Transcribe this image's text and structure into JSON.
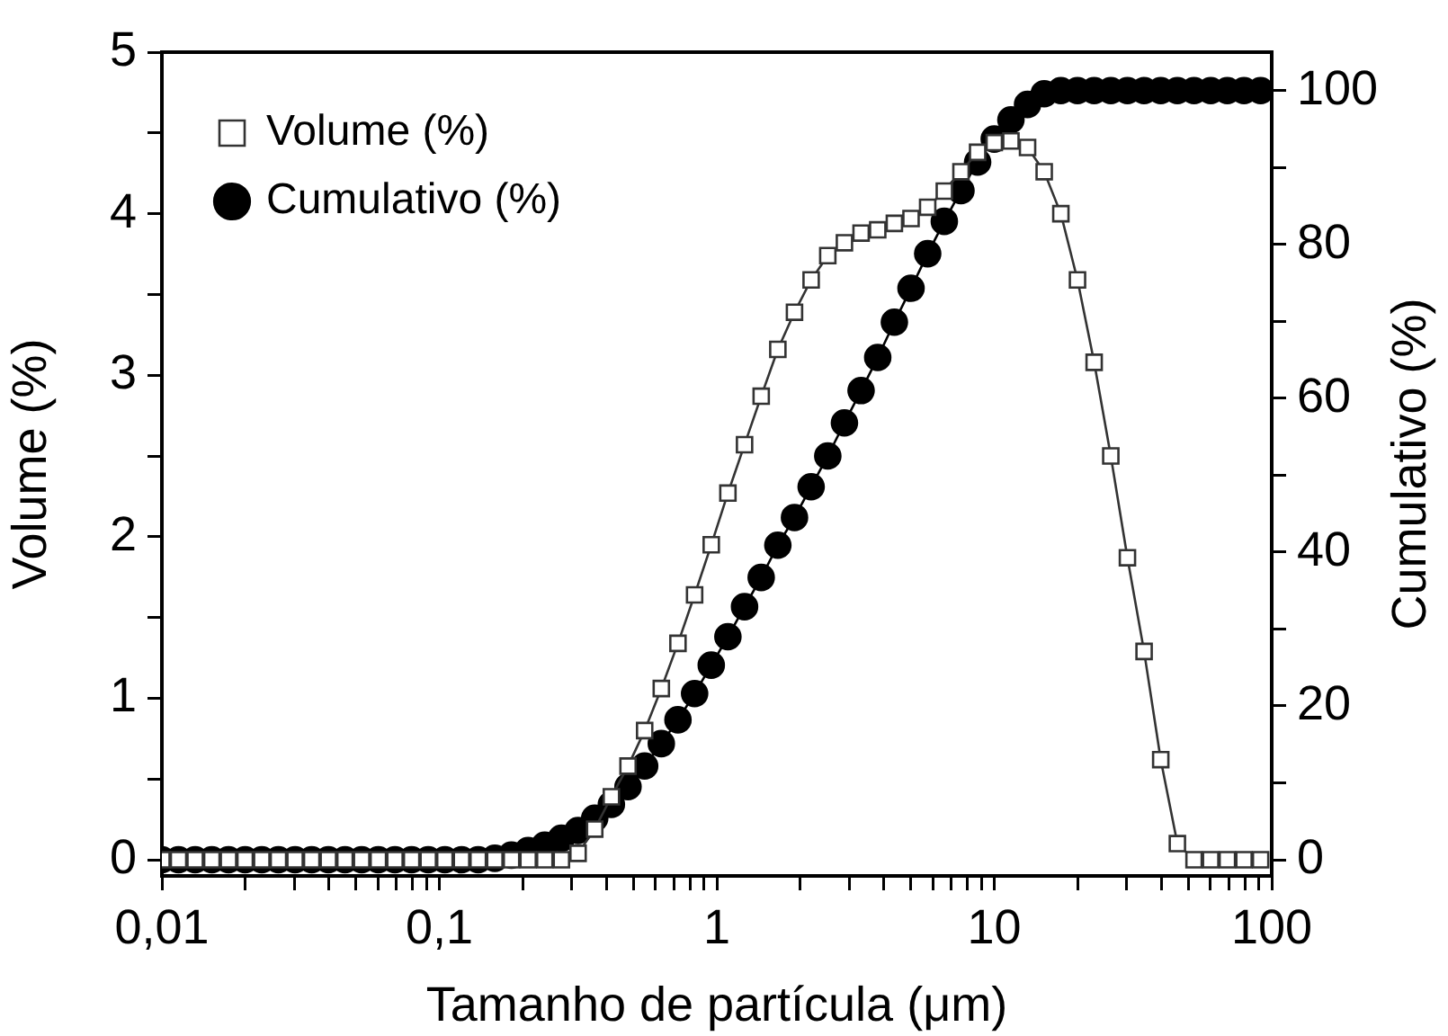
{
  "chart_data": {
    "type": "line",
    "xlabel": "Tamanho de partícula (μm)",
    "ylabel": "Volume (%)",
    "y2label": "Cumulativo (%)",
    "x": [
      0.01,
      0.01148,
      0.01318,
      0.01514,
      0.01738,
      0.01995,
      0.02291,
      0.0263,
      0.0302,
      0.03467,
      0.03981,
      0.04571,
      0.05248,
      0.06026,
      0.06918,
      0.07943,
      0.0912,
      0.10471,
      0.12023,
      0.13804,
      0.15849,
      0.18197,
      0.20893,
      0.23988,
      0.27542,
      0.31623,
      0.36308,
      0.41687,
      0.47863,
      0.54954,
      0.63096,
      0.72444,
      0.83176,
      0.95499,
      1.09648,
      1.25893,
      1.44544,
      1.65959,
      1.90546,
      2.18776,
      2.51189,
      2.88403,
      3.31131,
      3.80189,
      4.36516,
      5.01187,
      5.7544,
      6.60693,
      7.58578,
      8.70964,
      10,
      11.48154,
      13.18257,
      15.13561,
      17.37801,
      19.95262,
      22.90868,
      26.30268,
      30.19952,
      34.67369,
      39.81072,
      45.70882,
      52.48075,
      60.25596,
      69.1831,
      79.43282,
      91.20108
    ],
    "series": [
      {
        "name": "Volume (%)",
        "color": "#333333",
        "marker": "square",
        "values": [
          0,
          0,
          0,
          0,
          0,
          0,
          0,
          0,
          0,
          0,
          0,
          0,
          0,
          0,
          0,
          0,
          0,
          0,
          0,
          0,
          0,
          0,
          0,
          0,
          0,
          0.04,
          0.19,
          0.39,
          0.58,
          0.8,
          1.06,
          1.34,
          1.64,
          1.95,
          2.27,
          2.57,
          2.87,
          3.16,
          3.39,
          3.59,
          3.74,
          3.82,
          3.88,
          3.9,
          3.94,
          3.97,
          4.04,
          4.14,
          4.26,
          4.38,
          4.44,
          4.45,
          4.41,
          4.26,
          4.0,
          3.59,
          3.08,
          2.5,
          1.87,
          1.29,
          0.62,
          0.1,
          0,
          0,
          0,
          0,
          0
        ]
      },
      {
        "name": "Cumulativo (%)",
        "color": "#000000",
        "marker": "circle",
        "axis": "y2",
        "values": [
          0,
          0,
          0,
          0,
          0,
          0,
          0,
          0,
          0,
          0,
          0,
          0,
          0,
          0,
          0,
          0,
          0,
          0,
          0,
          0,
          0.2,
          0.6,
          1.2,
          1.9,
          2.8,
          3.8,
          5.4,
          7.2,
          9.5,
          12.2,
          15.1,
          18.2,
          21.6,
          25.3,
          29.0,
          32.9,
          36.7,
          40.9,
          44.5,
          48.5,
          52.5,
          56.8,
          61.0,
          65.3,
          69.9,
          74.3,
          78.8,
          83.0,
          87.0,
          90.7,
          93.7,
          96.2,
          98.2,
          99.6,
          100,
          100,
          100,
          100,
          100,
          100,
          100,
          100,
          100,
          100,
          100,
          100,
          100
        ]
      }
    ],
    "log": "x",
    "xlim": [
      0.01,
      100
    ],
    "xticks": [
      {
        "value": 0.01,
        "label": "0,01"
      },
      {
        "value": 0.02,
        "label": null
      },
      {
        "value": 0.03,
        "label": null
      },
      {
        "value": 0.04,
        "label": null
      },
      {
        "value": 0.05,
        "label": null
      },
      {
        "value": 0.06,
        "label": null
      },
      {
        "value": 0.07,
        "label": null
      },
      {
        "value": 0.08,
        "label": null
      },
      {
        "value": 0.09,
        "label": null
      },
      {
        "value": 0.1,
        "label": "0,1"
      },
      {
        "value": 0.2,
        "label": null
      },
      {
        "value": 0.3,
        "label": null
      },
      {
        "value": 0.4,
        "label": null
      },
      {
        "value": 0.5,
        "label": null
      },
      {
        "value": 0.6,
        "label": null
      },
      {
        "value": 0.7,
        "label": null
      },
      {
        "value": 0.8,
        "label": null
      },
      {
        "value": 0.9,
        "label": null
      },
      1,
      {
        "value": 2,
        "label": null
      },
      {
        "value": 3,
        "label": null
      },
      {
        "value": 4,
        "label": null
      },
      {
        "value": 5,
        "label": null
      },
      {
        "value": 6,
        "label": null
      },
      {
        "value": 7,
        "label": null
      },
      {
        "value": 8,
        "label": null
      },
      {
        "value": 9,
        "label": null
      },
      10,
      {
        "value": 20,
        "label": null
      },
      {
        "value": 30,
        "label": null
      },
      {
        "value": 40,
        "label": null
      },
      {
        "value": 50,
        "label": null
      },
      {
        "value": 60,
        "label": null
      },
      {
        "value": 70,
        "label": null
      },
      {
        "value": 80,
        "label": null
      },
      {
        "value": 90,
        "label": null
      },
      100
    ],
    "ylim": [
      -0.1,
      5
    ],
    "yticks": [
      0,
      {
        "value": 0.5,
        "label": null
      },
      1,
      {
        "value": 1.5,
        "label": null
      },
      2,
      {
        "value": 2.5,
        "label": null
      },
      3,
      {
        "value": 3.5,
        "label": null
      },
      4,
      {
        "value": 4.5,
        "label": null
      },
      5
    ],
    "y2lim": [
      -2.1,
      105
    ],
    "y2ticks": [
      0,
      {
        "value": 10,
        "label": null
      },
      20,
      {
        "value": 30,
        "label": null
      },
      40,
      {
        "value": 50,
        "label": null
      },
      60,
      {
        "value": 70,
        "label": null
      },
      80,
      {
        "value": 90,
        "label": null
      },
      100
    ],
    "grid": false,
    "legend": "top left",
    "line_style": "solid"
  }
}
